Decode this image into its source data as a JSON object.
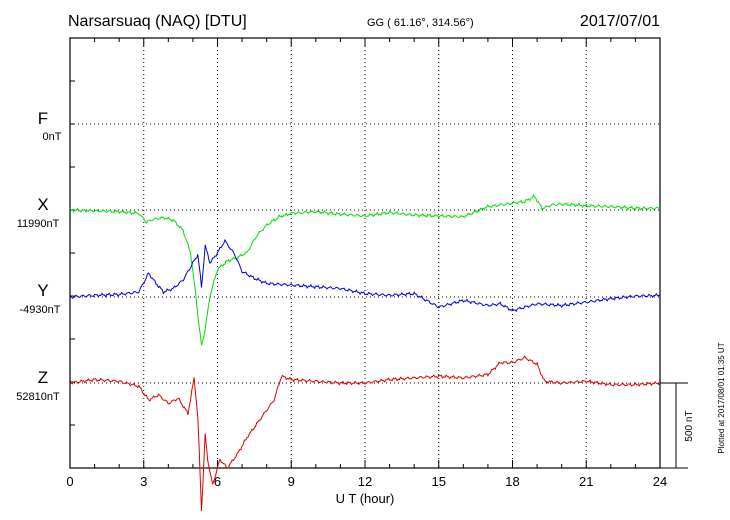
{
  "header": {
    "station": "Narsarsuaq (NAQ)  [DTU]",
    "coords": "GG ( 61.16°, 314.56°)",
    "date": "2017/07/01"
  },
  "plotted_note": "Plotted at 2017/08/01 01:35 UT",
  "colors": {
    "F": "#ffa500",
    "X": "#00dd00",
    "Y": "#0000dd",
    "Z": "#dd0000"
  },
  "chart_data": {
    "type": "line",
    "title": "Narsarsuaq (NAQ)  [DTU]",
    "xlabel": "U T (hour)",
    "ylabel": "",
    "xlim": [
      0,
      24
    ],
    "x_ticks": [
      "0",
      "3",
      "6",
      "9",
      "12",
      "15",
      "18",
      "21",
      "24"
    ],
    "scale_bar": "500 nT",
    "grid": true,
    "series": [
      {
        "name": "F",
        "baseline": "0nT",
        "x": [],
        "y": []
      },
      {
        "name": "X",
        "baseline": "11990nT",
        "x": [
          0,
          1,
          2,
          2.8,
          3.1,
          3.4,
          3.8,
          4.2,
          4.6,
          4.9,
          5.1,
          5.25,
          5.35,
          5.5,
          5.7,
          6.0,
          6.4,
          6.8,
          7.2,
          7.6,
          8.0,
          8.5,
          9,
          10,
          11,
          12,
          13,
          14,
          15,
          16,
          17,
          17.5,
          18,
          18.5,
          18.9,
          19.2,
          19.6,
          20,
          21,
          22,
          23,
          24
        ],
        "y": [
          0,
          -5,
          -10,
          -20,
          -70,
          -55,
          -45,
          -60,
          -120,
          -250,
          -480,
          -680,
          -800,
          -700,
          -500,
          -350,
          -300,
          -280,
          -250,
          -150,
          -90,
          -40,
          -20,
          -10,
          -25,
          -35,
          -15,
          -30,
          -35,
          -40,
          20,
          30,
          40,
          50,
          80,
          10,
          30,
          35,
          25,
          20,
          10,
          10
        ]
      },
      {
        "name": "Y",
        "baseline": "-4930nT",
        "x": [
          0,
          1,
          2,
          2.8,
          3.2,
          3.5,
          3.8,
          4.2,
          4.6,
          5.0,
          5.2,
          5.35,
          5.5,
          5.7,
          6.0,
          6.3,
          6.7,
          7.0,
          7.5,
          8,
          9,
          10,
          11,
          12,
          13,
          14,
          15,
          16,
          17,
          17.5,
          18,
          18.5,
          19,
          20,
          21,
          22,
          23,
          24
        ],
        "y": [
          0,
          10,
          15,
          30,
          140,
          80,
          30,
          50,
          100,
          200,
          250,
          60,
          300,
          200,
          260,
          330,
          250,
          150,
          110,
          80,
          70,
          60,
          50,
          20,
          10,
          20,
          -60,
          -20,
          -50,
          -40,
          -80,
          -60,
          -40,
          -50,
          -30,
          -10,
          5,
          10
        ]
      },
      {
        "name": "Z",
        "baseline": "52810nT",
        "x": [
          0,
          1,
          2,
          2.8,
          3.2,
          3.6,
          4.0,
          4.4,
          4.8,
          5.05,
          5.2,
          5.35,
          5.5,
          5.6,
          5.8,
          6.1,
          6.4,
          6.8,
          7.2,
          7.8,
          8.3,
          8.6,
          9,
          10,
          11,
          12,
          13,
          14,
          15,
          16,
          17,
          17.5,
          18,
          18.5,
          19,
          19.3,
          20,
          21,
          22,
          23,
          24
        ],
        "y": [
          0,
          20,
          10,
          -20,
          -100,
          -70,
          -120,
          -90,
          -180,
          30,
          -200,
          -750,
          -300,
          -450,
          -600,
          -450,
          -500,
          -420,
          -320,
          -200,
          -100,
          40,
          20,
          10,
          0,
          0,
          20,
          30,
          40,
          30,
          50,
          120,
          120,
          150,
          110,
          10,
          0,
          10,
          -10,
          -10,
          0
        ]
      }
    ]
  }
}
